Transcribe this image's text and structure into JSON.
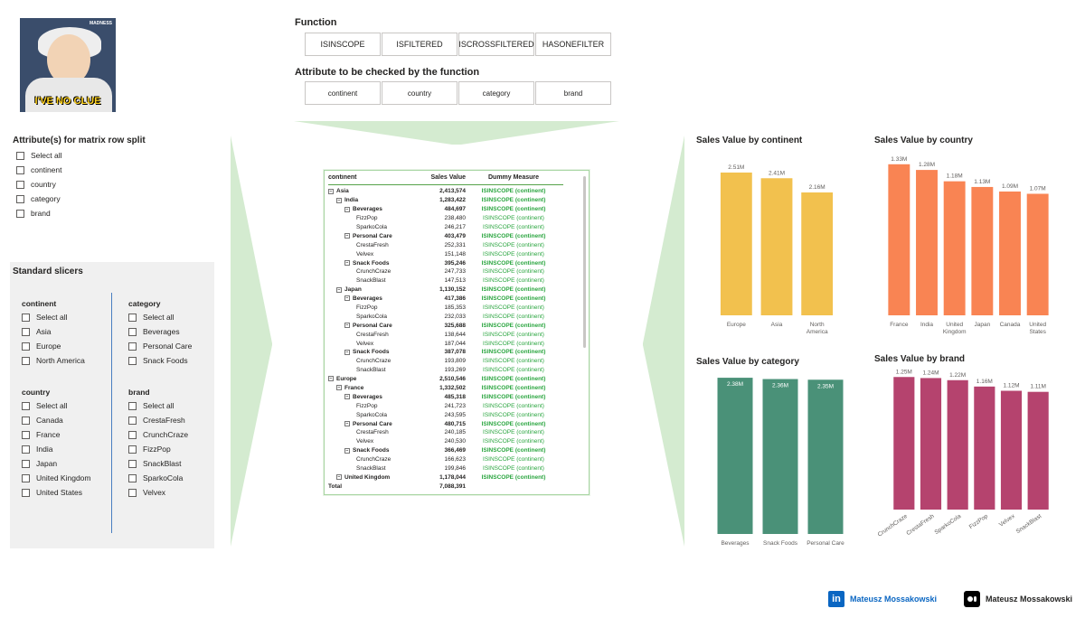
{
  "meme": {
    "caption": "I'VE NO CLUE",
    "tag": "MADNESS"
  },
  "function_panel": {
    "label": "Function",
    "buttons": [
      "ISINSCOPE",
      "ISFILTERED",
      "ISCROSSFILTERED",
      "HASONEFILTER"
    ],
    "selected": 0
  },
  "attribute_panel": {
    "label": "Attribute to be checked by the function",
    "buttons": [
      "continent",
      "country",
      "category",
      "brand"
    ],
    "selected": 0
  },
  "row_split": {
    "title": "Attribute(s) for matrix row split",
    "options": [
      "Select all",
      "continent",
      "country",
      "category",
      "brand"
    ]
  },
  "slicers": {
    "title": "Standard slicers",
    "continent": {
      "title": "continent",
      "options": [
        "Select all",
        "Asia",
        "Europe",
        "North America"
      ]
    },
    "category": {
      "title": "category",
      "options": [
        "Select all",
        "Beverages",
        "Personal Care",
        "Snack Foods"
      ]
    },
    "country": {
      "title": "country",
      "options": [
        "Select all",
        "Canada",
        "France",
        "India",
        "Japan",
        "United Kingdom",
        "United States"
      ]
    },
    "brand": {
      "title": "brand",
      "options": [
        "Select all",
        "CrestaFresh",
        "CrunchCraze",
        "FizzPop",
        "SnackBlast",
        "SparkoCola",
        "Velvex"
      ]
    }
  },
  "matrix": {
    "headers": [
      "continent",
      "Sales Value",
      "Dummy Measure"
    ],
    "rows": [
      {
        "level": 0,
        "label": "Asia",
        "value": "2,413,574",
        "measure": "ISINSCOPE (continent)",
        "bold": true,
        "exp": true
      },
      {
        "level": 1,
        "label": "India",
        "value": "1,283,422",
        "measure": "ISINSCOPE (continent)",
        "bold": true,
        "exp": true
      },
      {
        "level": 2,
        "label": "Beverages",
        "value": "484,697",
        "measure": "ISINSCOPE (continent)",
        "bold": true,
        "exp": true
      },
      {
        "level": 3,
        "label": "FizzPop",
        "value": "238,480",
        "measure": "ISINSCOPE (continent)",
        "bold": false,
        "exp": false
      },
      {
        "level": 3,
        "label": "SparkoCola",
        "value": "246,217",
        "measure": "ISINSCOPE (continent)",
        "bold": false,
        "exp": false
      },
      {
        "level": 2,
        "label": "Personal Care",
        "value": "403,479",
        "measure": "ISINSCOPE (continent)",
        "bold": true,
        "exp": true
      },
      {
        "level": 3,
        "label": "CrestaFresh",
        "value": "252,331",
        "measure": "ISINSCOPE (continent)",
        "bold": false,
        "exp": false
      },
      {
        "level": 3,
        "label": "Velvex",
        "value": "151,148",
        "measure": "ISINSCOPE (continent)",
        "bold": false,
        "exp": false
      },
      {
        "level": 2,
        "label": "Snack Foods",
        "value": "395,246",
        "measure": "ISINSCOPE (continent)",
        "bold": true,
        "exp": true
      },
      {
        "level": 3,
        "label": "CrunchCraze",
        "value": "247,733",
        "measure": "ISINSCOPE (continent)",
        "bold": false,
        "exp": false
      },
      {
        "level": 3,
        "label": "SnackBlast",
        "value": "147,513",
        "measure": "ISINSCOPE (continent)",
        "bold": false,
        "exp": false
      },
      {
        "level": 1,
        "label": "Japan",
        "value": "1,130,152",
        "measure": "ISINSCOPE (continent)",
        "bold": true,
        "exp": true
      },
      {
        "level": 2,
        "label": "Beverages",
        "value": "417,386",
        "measure": "ISINSCOPE (continent)",
        "bold": true,
        "exp": true
      },
      {
        "level": 3,
        "label": "FizzPop",
        "value": "185,353",
        "measure": "ISINSCOPE (continent)",
        "bold": false,
        "exp": false
      },
      {
        "level": 3,
        "label": "SparkoCola",
        "value": "232,033",
        "measure": "ISINSCOPE (continent)",
        "bold": false,
        "exp": false
      },
      {
        "level": 2,
        "label": "Personal Care",
        "value": "325,688",
        "measure": "ISINSCOPE (continent)",
        "bold": true,
        "exp": true
      },
      {
        "level": 3,
        "label": "CrestaFresh",
        "value": "138,644",
        "measure": "ISINSCOPE (continent)",
        "bold": false,
        "exp": false
      },
      {
        "level": 3,
        "label": "Velvex",
        "value": "187,044",
        "measure": "ISINSCOPE (continent)",
        "bold": false,
        "exp": false
      },
      {
        "level": 2,
        "label": "Snack Foods",
        "value": "387,078",
        "measure": "ISINSCOPE (continent)",
        "bold": true,
        "exp": true
      },
      {
        "level": 3,
        "label": "CrunchCraze",
        "value": "193,809",
        "measure": "ISINSCOPE (continent)",
        "bold": false,
        "exp": false
      },
      {
        "level": 3,
        "label": "SnackBlast",
        "value": "193,269",
        "measure": "ISINSCOPE (continent)",
        "bold": false,
        "exp": false
      },
      {
        "level": 0,
        "label": "Europe",
        "value": "2,510,546",
        "measure": "ISINSCOPE (continent)",
        "bold": true,
        "exp": true
      },
      {
        "level": 1,
        "label": "France",
        "value": "1,332,502",
        "measure": "ISINSCOPE (continent)",
        "bold": true,
        "exp": true
      },
      {
        "level": 2,
        "label": "Beverages",
        "value": "485,318",
        "measure": "ISINSCOPE (continent)",
        "bold": true,
        "exp": true
      },
      {
        "level": 3,
        "label": "FizzPop",
        "value": "241,723",
        "measure": "ISINSCOPE (continent)",
        "bold": false,
        "exp": false
      },
      {
        "level": 3,
        "label": "SparkoCola",
        "value": "243,595",
        "measure": "ISINSCOPE (continent)",
        "bold": false,
        "exp": false
      },
      {
        "level": 2,
        "label": "Personal Care",
        "value": "480,715",
        "measure": "ISINSCOPE (continent)",
        "bold": true,
        "exp": true
      },
      {
        "level": 3,
        "label": "CrestaFresh",
        "value": "240,185",
        "measure": "ISINSCOPE (continent)",
        "bold": false,
        "exp": false
      },
      {
        "level": 3,
        "label": "Velvex",
        "value": "240,530",
        "measure": "ISINSCOPE (continent)",
        "bold": false,
        "exp": false
      },
      {
        "level": 2,
        "label": "Snack Foods",
        "value": "366,469",
        "measure": "ISINSCOPE (continent)",
        "bold": true,
        "exp": true
      },
      {
        "level": 3,
        "label": "CrunchCraze",
        "value": "166,623",
        "measure": "ISINSCOPE (continent)",
        "bold": false,
        "exp": false
      },
      {
        "level": 3,
        "label": "SnackBlast",
        "value": "199,846",
        "measure": "ISINSCOPE (continent)",
        "bold": false,
        "exp": false
      },
      {
        "level": 1,
        "label": "United Kingdom",
        "value": "1,178,044",
        "measure": "ISINSCOPE (continent)",
        "bold": true,
        "exp": true
      },
      {
        "level": 0,
        "label": "Total",
        "value": "7,088,391",
        "measure": "",
        "bold": true,
        "exp": false
      }
    ]
  },
  "colors": {
    "continent": "#f2c14e",
    "country": "#f98453",
    "category": "#4a9178",
    "brand": "#b5436e",
    "selected": "#252423",
    "green_text": "#2aa53f",
    "funnel": "#d4ebd0"
  },
  "chart_data": [
    {
      "type": "bar",
      "title": "Sales Value by continent",
      "categories": [
        "Europe",
        "Asia",
        "North America"
      ],
      "values": [
        2.51,
        2.41,
        2.16
      ],
      "labels": [
        "2.51M",
        "2.41M",
        "2.16M"
      ],
      "ylim": [
        0,
        2.7
      ],
      "grid": false
    },
    {
      "type": "bar",
      "title": "Sales Value by country",
      "categories": [
        "France",
        "India",
        "United Kingdom",
        "Japan",
        "Canada",
        "United States"
      ],
      "values": [
        1.33,
        1.28,
        1.18,
        1.13,
        1.09,
        1.07
      ],
      "labels": [
        "1.33M",
        "1.28M",
        "1.18M",
        "1.13M",
        "1.09M",
        "1.07M"
      ],
      "ylim": [
        0,
        1.4
      ],
      "grid": false
    },
    {
      "type": "bar",
      "title": "Sales Value by category",
      "categories": [
        "Beverages",
        "Snack Foods",
        "Personal Care"
      ],
      "values": [
        2.38,
        2.36,
        2.35
      ],
      "labels": [
        "2.38M",
        "2.36M",
        "2.35M"
      ],
      "ylim": [
        0,
        2.45
      ],
      "grid": false
    },
    {
      "type": "bar",
      "title": "Sales Value by brand",
      "categories": [
        "CrunchCraze",
        "CrestaFresh",
        "SparkoCola",
        "FizzPop",
        "Velvex",
        "SnackBlast"
      ],
      "values": [
        1.25,
        1.24,
        1.22,
        1.16,
        1.12,
        1.11
      ],
      "labels": [
        "1.25M",
        "1.24M",
        "1.22M",
        "1.16M",
        "1.12M",
        "1.11M"
      ],
      "ylim": [
        0,
        1.38
      ],
      "grid": false
    }
  ],
  "footer": {
    "linkedin": "Mateusz Mossakowski",
    "medium": "Mateusz Mossakowski"
  }
}
